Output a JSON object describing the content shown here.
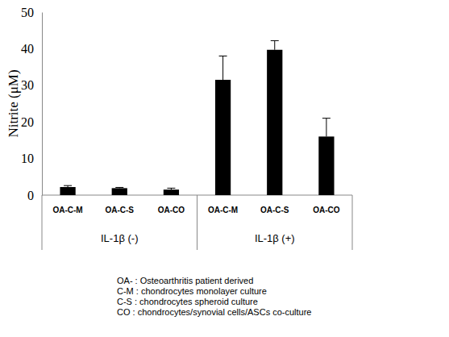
{
  "chart_data": {
    "type": "bar",
    "y_label": "Nitrite (μM)",
    "categories": [
      "OA-C-M",
      "OA-C-S",
      "OA-CO",
      "OA-C-M",
      "OA-C-S",
      "OA-CO"
    ],
    "groups": [
      "IL-1β (-)",
      "IL-1β (+)"
    ],
    "values": [
      2.2,
      1.9,
      1.5,
      31.5,
      39.7,
      16
    ],
    "errors": [
      0.4,
      0.2,
      0.4,
      6.5,
      2.5,
      5
    ],
    "color": "#000000",
    "ylim": [
      0,
      50
    ],
    "yticks": [
      0,
      10,
      20,
      30,
      40,
      50
    ],
    "grid": false,
    "notes": [
      "OA- : Osteoarthritis patient derived",
      "C-M : chondrocytes monolayer culture",
      "C-S : chondrocytes spheroid culture",
      "CO : chondrocytes/synovial cells/ASCs co-culture"
    ]
  }
}
